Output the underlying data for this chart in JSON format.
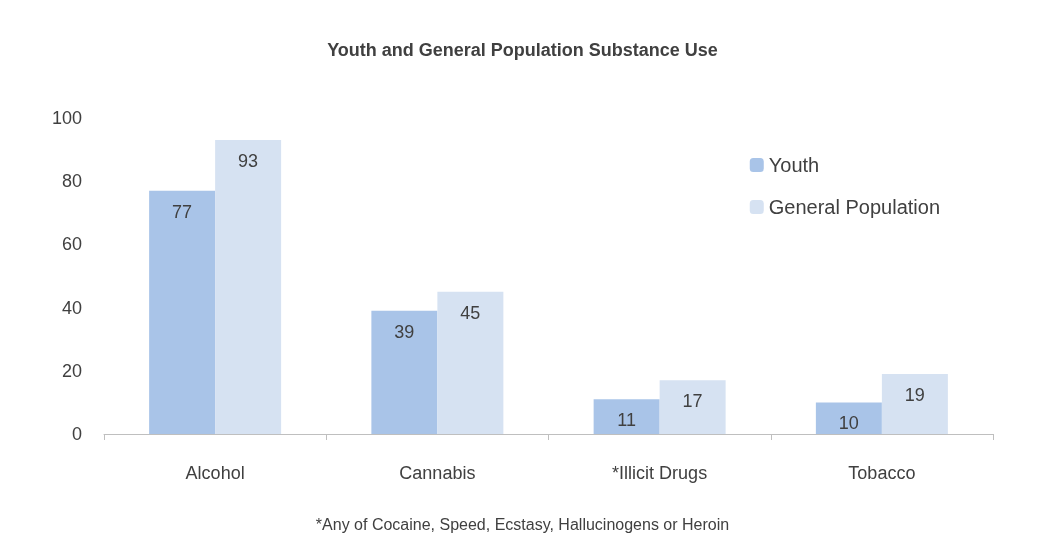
{
  "chart_data": {
    "type": "bar",
    "title": "Youth and General Population Substance Use",
    "categories": [
      "Alcohol",
      "Cannabis",
      "*Illicit Drugs",
      "Tobacco"
    ],
    "series": [
      {
        "name": "Youth",
        "color": "#a9c4e8",
        "values": [
          77,
          39,
          11,
          10
        ]
      },
      {
        "name": "General Population",
        "color": "#d6e2f2",
        "values": [
          93,
          45,
          17,
          19
        ]
      }
    ],
    "ylim": [
      0,
      100
    ],
    "yticks": [
      0,
      20,
      40,
      60,
      80,
      100
    ],
    "grid": false,
    "legend": "top right",
    "data_labels": true,
    "annotations": [
      "*Any of Cocaine, Speed, Ecstasy, Hallucinogens or Heroin"
    ]
  }
}
